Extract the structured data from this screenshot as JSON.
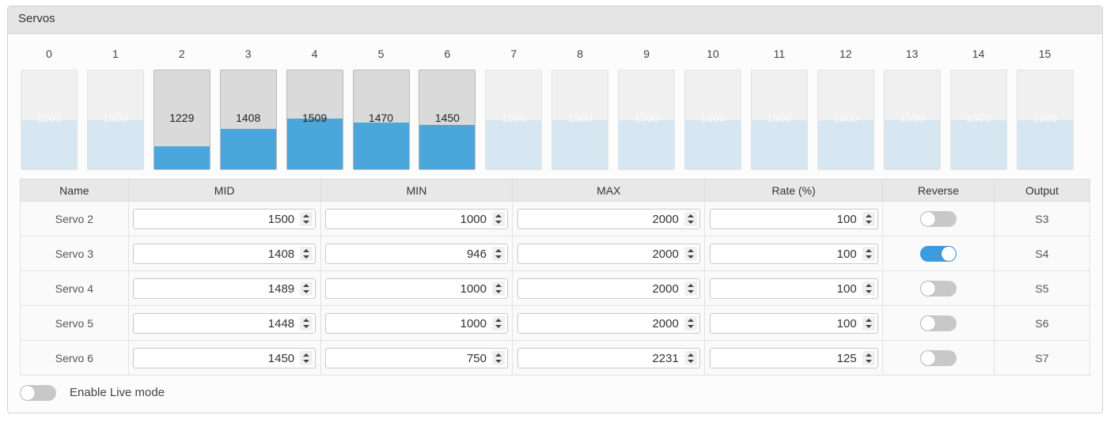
{
  "panel": {
    "title": "Servos"
  },
  "bars": [
    {
      "channel": "0",
      "value": "1500",
      "level": 0.5,
      "active": false
    },
    {
      "channel": "1",
      "value": "1500",
      "level": 0.5,
      "active": false
    },
    {
      "channel": "2",
      "value": "1229",
      "level": 0.23,
      "active": true
    },
    {
      "channel": "3",
      "value": "1408",
      "level": 0.41,
      "active": true
    },
    {
      "channel": "4",
      "value": "1509",
      "level": 0.51,
      "active": true
    },
    {
      "channel": "5",
      "value": "1470",
      "level": 0.47,
      "active": true
    },
    {
      "channel": "6",
      "value": "1450",
      "level": 0.45,
      "active": true
    },
    {
      "channel": "7",
      "value": "1500",
      "level": 0.5,
      "active": false
    },
    {
      "channel": "8",
      "value": "1500",
      "level": 0.5,
      "active": false
    },
    {
      "channel": "9",
      "value": "1500",
      "level": 0.5,
      "active": false
    },
    {
      "channel": "10",
      "value": "1500",
      "level": 0.5,
      "active": false
    },
    {
      "channel": "11",
      "value": "1500",
      "level": 0.5,
      "active": false
    },
    {
      "channel": "12",
      "value": "1500",
      "level": 0.5,
      "active": false
    },
    {
      "channel": "13",
      "value": "1500",
      "level": 0.5,
      "active": false
    },
    {
      "channel": "14",
      "value": "1500",
      "level": 0.5,
      "active": false
    },
    {
      "channel": "15",
      "value": "1500",
      "level": 0.5,
      "active": false
    }
  ],
  "table": {
    "headers": {
      "name": "Name",
      "mid": "MID",
      "min": "MIN",
      "max": "MAX",
      "rate": "Rate (%)",
      "reverse": "Reverse",
      "output": "Output"
    },
    "rows": [
      {
        "name": "Servo 2",
        "mid": "1500",
        "min": "1000",
        "max": "2000",
        "rate": "100",
        "reverse": false,
        "output": "S3"
      },
      {
        "name": "Servo 3",
        "mid": "1408",
        "min": "946",
        "max": "2000",
        "rate": "100",
        "reverse": true,
        "output": "S4"
      },
      {
        "name": "Servo 4",
        "mid": "1489",
        "min": "1000",
        "max": "2000",
        "rate": "100",
        "reverse": false,
        "output": "S5"
      },
      {
        "name": "Servo 5",
        "mid": "1448",
        "min": "1000",
        "max": "2000",
        "rate": "100",
        "reverse": false,
        "output": "S6"
      },
      {
        "name": "Servo 6",
        "mid": "1450",
        "min": "750",
        "max": "2231",
        "rate": "125",
        "reverse": false,
        "output": "S7"
      }
    ]
  },
  "live_mode": {
    "label": "Enable Live mode",
    "enabled": false
  },
  "colors": {
    "accent": "#4ba6dc",
    "idle_fill": "#d6e7f2",
    "toggle_on": "#3d9be0"
  }
}
